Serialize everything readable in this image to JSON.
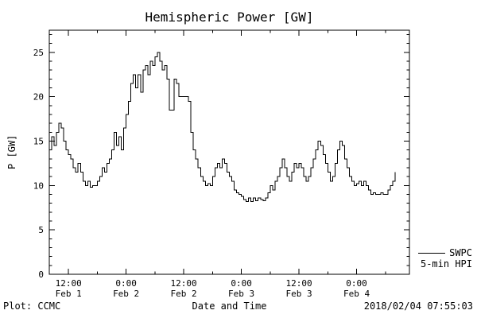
{
  "footer": {
    "plot_credit": "Plot: CCMC",
    "timestamp": "2018/02/04 07:55:03"
  },
  "legend": {
    "line1": "SWPC",
    "line2": "5-min HPI"
  },
  "chart_data": {
    "type": "line",
    "title": "Hemispheric Power [GW]",
    "xlabel": "Date and Time",
    "ylabel": "P [GW]",
    "ylim": [
      0,
      27.5
    ],
    "y_ticks": [
      0,
      5,
      10,
      15,
      20,
      25
    ],
    "y_minor_step": 1,
    "x_hours_origin": "Feb 1 00:00",
    "xlim_hours": [
      8,
      83
    ],
    "x_minor_step_hours": 6,
    "x_ticks": [
      {
        "hour": 12,
        "time": "12:00",
        "date": "Feb 1"
      },
      {
        "hour": 24,
        "time": "0:00",
        "date": "Feb 2"
      },
      {
        "hour": 36,
        "time": "12:00",
        "date": "Feb 2"
      },
      {
        "hour": 48,
        "time": "0:00",
        "date": "Feb 3"
      },
      {
        "hour": 60,
        "time": "12:00",
        "date": "Feb 3"
      },
      {
        "hour": 72,
        "time": "0:00",
        "date": "Feb 4"
      }
    ],
    "grid": false,
    "legend_position": "right-outside",
    "series": [
      {
        "name": "SWPC 5-min HPI",
        "color": "#000000",
        "style": "step",
        "points": [
          [
            8,
            14
          ],
          [
            8.5,
            15.5
          ],
          [
            9,
            14.5
          ],
          [
            9.5,
            16
          ],
          [
            10,
            17
          ],
          [
            10.5,
            16.5
          ],
          [
            11,
            15
          ],
          [
            11.5,
            14
          ],
          [
            12,
            13.5
          ],
          [
            12.5,
            13
          ],
          [
            13,
            12
          ],
          [
            13.5,
            11.5
          ],
          [
            14,
            12.5
          ],
          [
            14.5,
            11.5
          ],
          [
            15,
            10.5
          ],
          [
            15.5,
            10
          ],
          [
            16,
            10.5
          ],
          [
            16.5,
            9.8
          ],
          [
            17,
            10
          ],
          [
            17.5,
            10
          ],
          [
            18,
            10.5
          ],
          [
            18.5,
            11
          ],
          [
            19,
            12
          ],
          [
            19.5,
            11.5
          ],
          [
            20,
            12.5
          ],
          [
            20.5,
            13
          ],
          [
            21,
            14
          ],
          [
            21.5,
            16
          ],
          [
            22,
            14.5
          ],
          [
            22.5,
            15.5
          ],
          [
            23,
            14
          ],
          [
            23.5,
            16.5
          ],
          [
            24,
            18
          ],
          [
            24.5,
            19.5
          ],
          [
            25,
            21.5
          ],
          [
            25.5,
            22.5
          ],
          [
            26,
            21
          ],
          [
            26.5,
            22.5
          ],
          [
            27,
            20.5
          ],
          [
            27.5,
            23
          ],
          [
            28,
            23.5
          ],
          [
            28.5,
            22.5
          ],
          [
            29,
            24
          ],
          [
            29.5,
            23.5
          ],
          [
            30,
            24.5
          ],
          [
            30.5,
            25
          ],
          [
            31,
            24
          ],
          [
            31.5,
            23
          ],
          [
            32,
            23.5
          ],
          [
            32.5,
            22
          ],
          [
            33,
            18.5
          ],
          [
            33.5,
            18.5
          ],
          [
            34,
            22
          ],
          [
            34.5,
            21.5
          ],
          [
            35,
            20
          ],
          [
            35.5,
            20
          ],
          [
            36,
            20
          ],
          [
            36.5,
            20
          ],
          [
            37,
            19.5
          ],
          [
            37.5,
            16
          ],
          [
            38,
            14
          ],
          [
            38.5,
            13
          ],
          [
            39,
            12
          ],
          [
            39.5,
            11
          ],
          [
            40,
            10.5
          ],
          [
            40.5,
            10
          ],
          [
            41,
            10.2
          ],
          [
            41.5,
            10
          ],
          [
            42,
            11
          ],
          [
            42.5,
            12
          ],
          [
            43,
            12.5
          ],
          [
            43.5,
            12
          ],
          [
            44,
            13
          ],
          [
            44.5,
            12.5
          ],
          [
            45,
            11.5
          ],
          [
            45.5,
            11
          ],
          [
            46,
            10.5
          ],
          [
            46.5,
            9.5
          ],
          [
            47,
            9.2
          ],
          [
            47.5,
            9
          ],
          [
            48,
            8.8
          ],
          [
            48.5,
            8.4
          ],
          [
            49,
            8.2
          ],
          [
            49.5,
            8.6
          ],
          [
            50,
            8.2
          ],
          [
            50.5,
            8.6
          ],
          [
            51,
            8.3
          ],
          [
            51.5,
            8.6
          ],
          [
            52,
            8.4
          ],
          [
            52.5,
            8.3
          ],
          [
            53,
            8.6
          ],
          [
            53.5,
            9.2
          ],
          [
            54,
            10
          ],
          [
            54.5,
            9.5
          ],
          [
            55,
            10.5
          ],
          [
            55.5,
            11
          ],
          [
            56,
            12
          ],
          [
            56.5,
            13
          ],
          [
            57,
            12
          ],
          [
            57.5,
            11
          ],
          [
            58,
            10.5
          ],
          [
            58.5,
            11.5
          ],
          [
            59,
            12.5
          ],
          [
            59.5,
            12
          ],
          [
            60,
            12.5
          ],
          [
            60.5,
            12
          ],
          [
            61,
            11
          ],
          [
            61.5,
            10.5
          ],
          [
            62,
            11
          ],
          [
            62.5,
            12
          ],
          [
            63,
            13
          ],
          [
            63.5,
            14
          ],
          [
            64,
            15
          ],
          [
            64.5,
            14.5
          ],
          [
            65,
            13.5
          ],
          [
            65.5,
            12.5
          ],
          [
            66,
            11.5
          ],
          [
            66.5,
            10.5
          ],
          [
            67,
            11
          ],
          [
            67.5,
            12.5
          ],
          [
            68,
            14
          ],
          [
            68.5,
            15
          ],
          [
            69,
            14.5
          ],
          [
            69.5,
            13
          ],
          [
            70,
            12
          ],
          [
            70.5,
            11
          ],
          [
            71,
            10.5
          ],
          [
            71.5,
            10
          ],
          [
            72,
            10.2
          ],
          [
            72.5,
            10.5
          ],
          [
            73,
            10
          ],
          [
            73.5,
            10.5
          ],
          [
            74,
            10
          ],
          [
            74.5,
            9.5
          ],
          [
            75,
            9
          ],
          [
            75.5,
            9.2
          ],
          [
            76,
            9
          ],
          [
            76.5,
            9
          ],
          [
            77,
            9.2
          ],
          [
            77.5,
            9
          ],
          [
            78,
            9
          ],
          [
            78.5,
            9.5
          ],
          [
            79,
            10
          ],
          [
            79.5,
            10.5
          ],
          [
            80,
            11.5
          ]
        ]
      }
    ]
  }
}
